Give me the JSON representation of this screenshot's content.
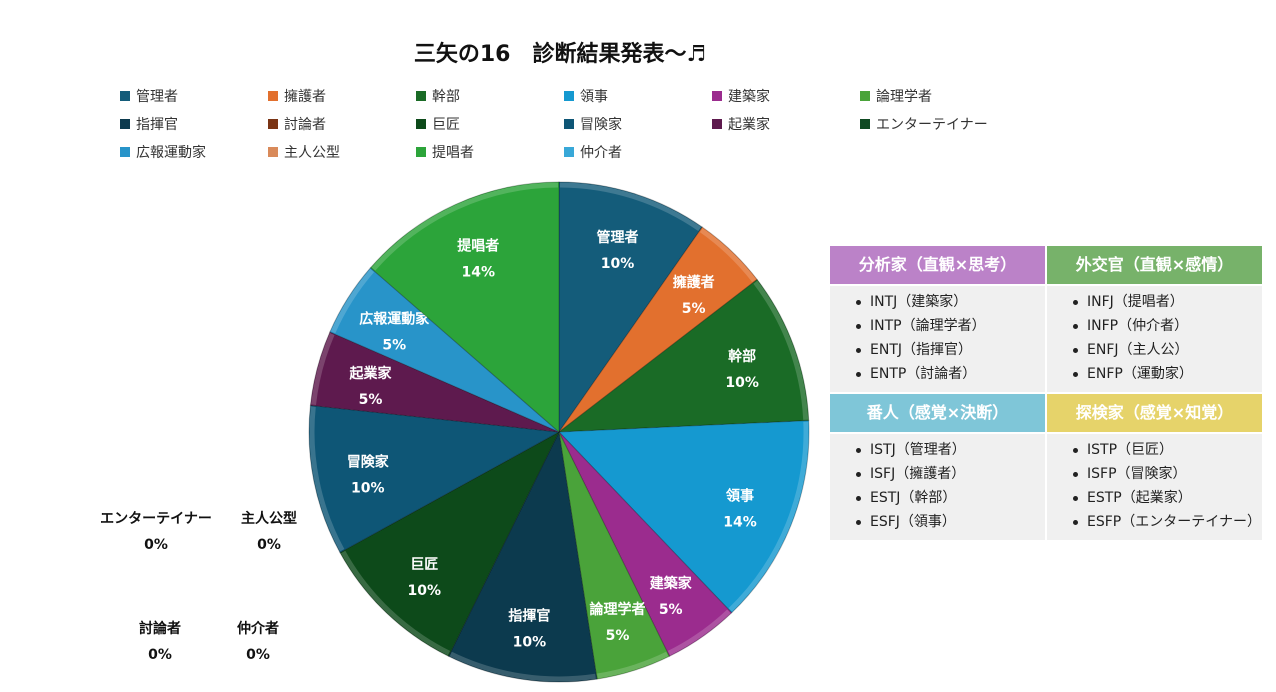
{
  "chart_data": {
    "type": "pie",
    "title": "三矢の16　診断結果発表～♬",
    "legend_position": "top",
    "categories": [
      "管理者",
      "擁護者",
      "幹部",
      "領事",
      "建築家",
      "論理学者",
      "指揮官",
      "討論者",
      "巨匠",
      "冒険家",
      "起業家",
      "エンターテイナー",
      "広報運動家",
      "主人公型",
      "提唱者",
      "仲介者"
    ],
    "values": [
      10,
      5,
      10,
      14,
      5,
      5,
      10,
      0,
      10,
      10,
      5,
      0,
      5,
      0,
      14,
      0
    ],
    "value_labels": [
      "10%",
      "5%",
      "10%",
      "14%",
      "5%",
      "5%",
      "10%",
      "0%",
      "10%",
      "10%",
      "5%",
      "0%",
      "5%",
      "0%",
      "14%",
      "0%"
    ],
    "colors": [
      "#145c7a",
      "#e2702e",
      "#1a6b26",
      "#1599d0",
      "#9b2c8e",
      "#4aa33a",
      "#0c3a4e",
      "#7a3414",
      "#0d4a1a",
      "#0e5676",
      "#5e1a4e",
      "#0f4a22",
      "#2894c9",
      "#d98a5a",
      "#2ca43a",
      "#38a8d8"
    ]
  },
  "types_table": [
    {
      "header": "分析家（直観×思考）",
      "color": "#bb82c8",
      "items": [
        "INTJ（建築家）",
        "INTP（論理学者）",
        "ENTJ（指揮官）",
        "ENTP（討論者）"
      ]
    },
    {
      "header": "外交官（直観×感情）",
      "color": "#77b26a",
      "items": [
        "INFJ（提唱者）",
        "INFP（仲介者）",
        "ENFJ（主人公）",
        "ENFP（運動家）"
      ]
    },
    {
      "header": "番人（感覚×決断）",
      "color": "#7fc6d8",
      "items": [
        "ISTJ（管理者）",
        "ISFJ（擁護者）",
        "ESTJ（幹部）",
        "ESFJ（領事）"
      ]
    },
    {
      "header": "探検家（感覚×知覚）",
      "color": "#e6d36a",
      "items": [
        "ISTP（巨匠）",
        "ISFP（冒険家）",
        "ESTP（起業家）",
        "ESFP（エンターテイナー）"
      ]
    }
  ]
}
